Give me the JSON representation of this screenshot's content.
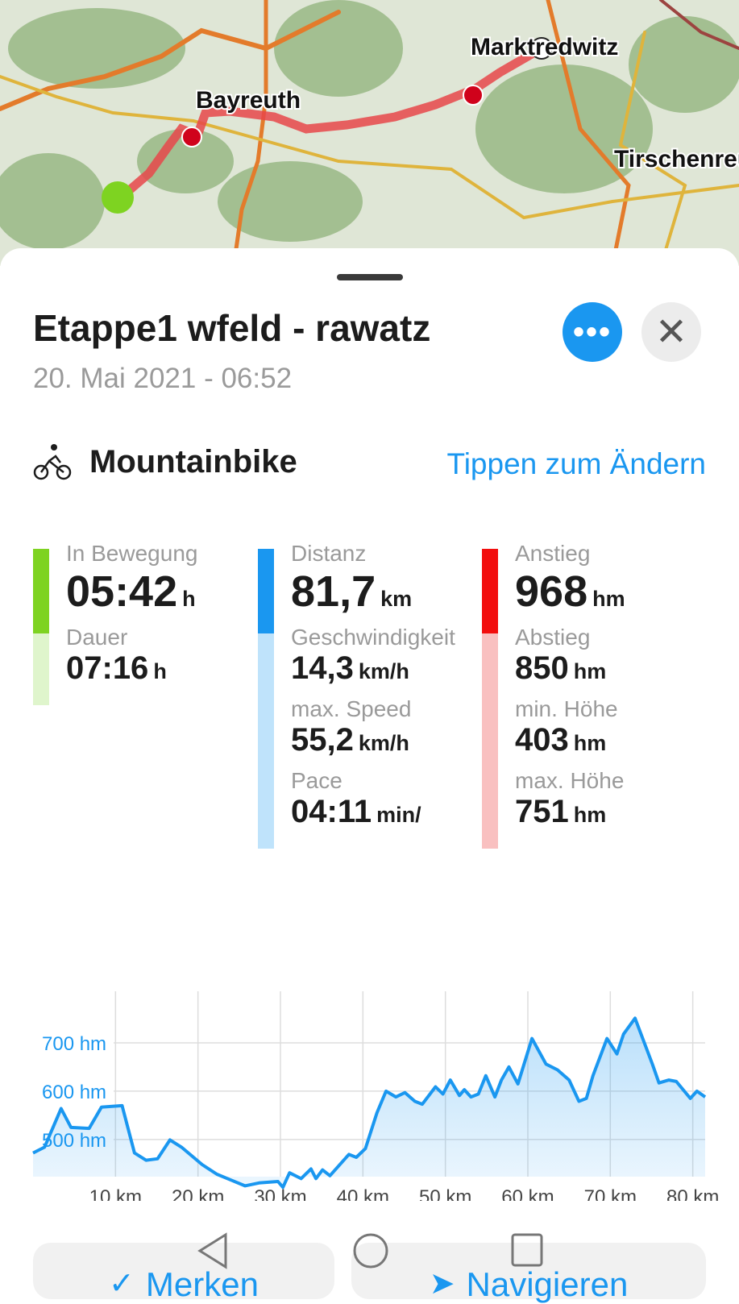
{
  "map": {
    "places": [
      "Marktredwitz",
      "Bayreuth",
      "Tirschenreuth"
    ],
    "route_color": "#e8474a",
    "start_color": "#7ed321"
  },
  "header": {
    "title": "Etappe1 wfeld - rawatz",
    "date": "20. Mai 2021 - 06:52",
    "more_icon": "more-horizontal-icon",
    "close_icon": "close-icon"
  },
  "sport": {
    "icon": "mountainbike-icon",
    "label": "Mountainbike",
    "change_link": "Tippen zum Ändern"
  },
  "stats": {
    "time": {
      "color": "#7ed321",
      "light": "#dff5cc",
      "items": [
        {
          "label": "In Bewegung",
          "value": "05:42",
          "unit": "h"
        },
        {
          "label": "Dauer",
          "value": "07:16",
          "unit": "h"
        }
      ]
    },
    "distance": {
      "color": "#1a97f0",
      "light": "#bfe3fb",
      "items": [
        {
          "label": "Distanz",
          "value": "81,7",
          "unit": "km"
        },
        {
          "label": "Geschwindigkeit",
          "value": "14,3",
          "unit": "km/h"
        },
        {
          "label": "max. Speed",
          "value": "55,2",
          "unit": "km/h"
        },
        {
          "label": "Pace",
          "value": "04:11",
          "unit": "min/"
        }
      ]
    },
    "elevation": {
      "color": "#f20d0d",
      "light": "#f9c0c0",
      "items": [
        {
          "label": "Anstieg",
          "value": "968",
          "unit": "hm"
        },
        {
          "label": "Abstieg",
          "value": "850",
          "unit": "hm"
        },
        {
          "label": "min. Höhe",
          "value": "403",
          "unit": "hm"
        },
        {
          "label": "max. Höhe",
          "value": "751",
          "unit": "hm"
        }
      ]
    }
  },
  "chart_data": {
    "type": "area",
    "color": "#1a97f0",
    "xlim": [
      0,
      81.5
    ],
    "ylim": [
      423,
      790
    ],
    "grid": true,
    "x_ticks": [
      "10 km",
      "20 km",
      "30 km",
      "40 km",
      "50 km",
      "60 km",
      "70 km",
      "80 km"
    ],
    "x_tick_values": [
      10,
      20,
      30,
      40,
      50,
      60,
      70,
      80
    ],
    "y_ticks": [
      "500 hm",
      "600 hm",
      "700 hm"
    ],
    "y_tick_values": [
      500,
      600,
      700
    ],
    "x": [
      0,
      1.4,
      3.4,
      4.6,
      6.8,
      8.3,
      10.8,
      12.3,
      13.7,
      15.1,
      16.6,
      18,
      20.5,
      22.3,
      24,
      25.7,
      27.4,
      29.7,
      30.3,
      31.1,
      32.5,
      33.7,
      34.3,
      35.1,
      36,
      38.3,
      39.2,
      40.3,
      41.7,
      42.8,
      44,
      45.1,
      46.3,
      47.2,
      48.8,
      49.7,
      50.6,
      51.7,
      52.3,
      53.1,
      54,
      54.9,
      56,
      56.8,
      57.7,
      58.8,
      60.5,
      62.2,
      63.6,
      65,
      66.2,
      67.1,
      67.9,
      69.6,
      70.8,
      71.6,
      73,
      75.1,
      75.9,
      77.1,
      78,
      79.7,
      80.5,
      81.5
    ],
    "y": [
      472,
      484,
      564,
      525,
      523,
      567,
      570,
      472,
      457,
      460,
      499,
      484,
      448,
      428,
      416,
      404,
      410,
      413,
      401,
      431,
      419,
      439,
      419,
      437,
      425,
      469,
      463,
      481,
      555,
      600,
      588,
      597,
      579,
      573,
      609,
      594,
      623,
      591,
      603,
      588,
      594,
      632,
      588,
      623,
      650,
      615,
      709,
      656,
      644,
      623,
      579,
      585,
      632,
      709,
      677,
      718,
      751,
      656,
      617,
      623,
      620,
      585,
      600,
      588
    ]
  },
  "actions": {
    "save": "Merken",
    "navigate": "Navigieren"
  },
  "system_nav": {
    "back": "back-icon",
    "home": "home-icon",
    "recents": "recents-icon"
  }
}
